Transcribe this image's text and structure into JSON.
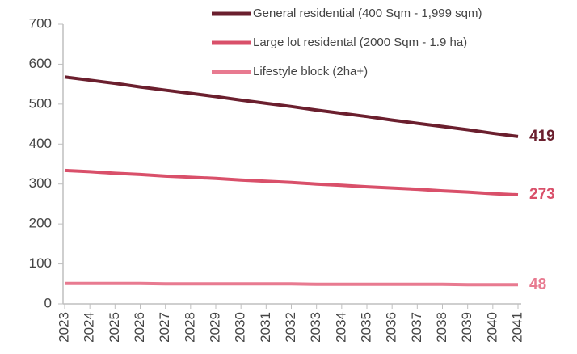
{
  "chart_data": {
    "type": "line",
    "x": [
      2023,
      2024,
      2025,
      2026,
      2027,
      2028,
      2029,
      2030,
      2031,
      2032,
      2033,
      2034,
      2035,
      2036,
      2037,
      2038,
      2039,
      2040,
      2041
    ],
    "ylim": [
      0,
      700
    ],
    "yticks": [
      0,
      100,
      200,
      300,
      400,
      500,
      600,
      700
    ],
    "series": [
      {
        "name": "General residential (400 Sqm - 1,999 sqm)",
        "color": "#6b1f2e",
        "values": [
          568,
          560,
          552,
          543,
          535,
          527,
          519,
          510,
          502,
          494,
          485,
          477,
          469,
          460,
          452,
          444,
          436,
          427,
          419
        ]
      },
      {
        "name": "Large lot residental (2000 Sqm - 1.9 ha)",
        "color": "#d9506a",
        "values": [
          334,
          331,
          327,
          324,
          320,
          317,
          314,
          310,
          307,
          304,
          300,
          297,
          293,
          290,
          287,
          283,
          280,
          276,
          273
        ]
      },
      {
        "name": "Lifestyle block (2ha+)",
        "color": "#e87a90",
        "values": [
          51,
          51,
          51,
          51,
          50,
          50,
          50,
          50,
          50,
          50,
          49,
          49,
          49,
          49,
          49,
          49,
          48,
          48,
          48
        ]
      }
    ]
  }
}
